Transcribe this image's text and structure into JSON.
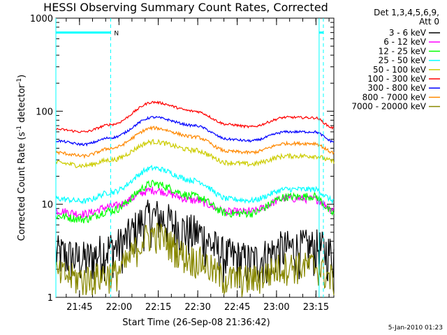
{
  "chart_data": {
    "type": "line",
    "title": "HESSI Observing Summary Count Rates, Corrected",
    "xlabel": "Start Time (26-Sep-08 21:36:42)",
    "ylabel_main": "Corrected Count Rate (s",
    "ylabel_sup1": "-1",
    "ylabel_mid": " detector",
    "ylabel_sup2": "-1",
    "ylabel_end": ")",
    "y_scale": "log",
    "ylim": [
      1,
      1000
    ],
    "xlim": [
      0,
      100
    ],
    "x_ticks": [
      "21:45",
      "22:00",
      "22:15",
      "22:30",
      "22:45",
      "23:00",
      "23:15"
    ],
    "x_tick_pos": [
      10.6,
      28.3,
      45.9,
      63.6,
      81.3,
      98.9,
      116.6
    ],
    "y_ticks": [
      "1",
      "10",
      "100",
      "1000"
    ],
    "y_tick_vals": [
      1,
      10,
      100,
      1000
    ],
    "legend_header": [
      "Det 1,3,4,5,6,9,",
      "Att 0"
    ],
    "legend_position": "right",
    "footer": "5-Jan-2010 01:23",
    "annotations": {
      "n_label": "N",
      "cyan_bars": [
        [
          0,
          19.7
        ],
        [
          94.7,
          100
        ]
      ],
      "dashed_lines": [
        19.7,
        100
      ],
      "solid_lines": [
        0,
        94.7
      ],
      "cyan_bar_level": 700
    },
    "series": [
      {
        "name": "3 - 6 keV",
        "color": "#000000",
        "values": [
          3.0,
          2.6,
          3.4,
          7.5,
          5.0,
          2.8,
          2.5,
          3.4,
          3.5,
          3.0
        ]
      },
      {
        "name": "6 - 12 keV",
        "color": "#ff00ff",
        "values": [
          8.5,
          7.9,
          9.5,
          14.2,
          11.0,
          8.3,
          8.4,
          11.6,
          11.4,
          8.9
        ]
      },
      {
        "name": "12 - 25 keV",
        "color": "#00ff00",
        "values": [
          7.5,
          6.9,
          8.6,
          16.6,
          12.2,
          8.0,
          8.0,
          12.0,
          12.2,
          8.0
        ]
      },
      {
        "name": "25 - 50 keV",
        "color": "#00ffff",
        "values": [
          11.5,
          10.8,
          13.5,
          24.5,
          18.0,
          11.4,
          11.0,
          14.5,
          14.5,
          11.0
        ]
      },
      {
        "name": "50 - 100 keV",
        "color": "#cccc00",
        "values": [
          28.0,
          26.0,
          30.0,
          47.0,
          38.0,
          28.0,
          27.0,
          33.0,
          33.0,
          29.0
        ]
      },
      {
        "name": "100 - 300 keV",
        "color": "#ff0000",
        "values": [
          64.0,
          60.0,
          72.0,
          125.0,
          100.0,
          72.0,
          68.0,
          86.0,
          85.0,
          66.0
        ]
      },
      {
        "name": "300 - 800 keV",
        "color": "#0000ff",
        "values": [
          48.0,
          44.0,
          52.0,
          86.0,
          70.0,
          50.0,
          48.0,
          60.0,
          60.0,
          47.0
        ]
      },
      {
        "name": "800 - 7000 keV",
        "color": "#ff8800",
        "values": [
          36.0,
          33.0,
          40.0,
          66.0,
          53.0,
          37.0,
          36.0,
          45.0,
          45.0,
          36.0
        ]
      },
      {
        "name": "7000 - 20000 keV",
        "color": "#888800",
        "values": [
          1.8,
          1.6,
          1.8,
          4.8,
          2.6,
          1.6,
          1.6,
          2.2,
          2.2,
          1.6
        ]
      }
    ],
    "x": [
      0,
      10,
      20,
      35,
      50,
      62,
      70,
      83,
      93,
      100
    ]
  }
}
